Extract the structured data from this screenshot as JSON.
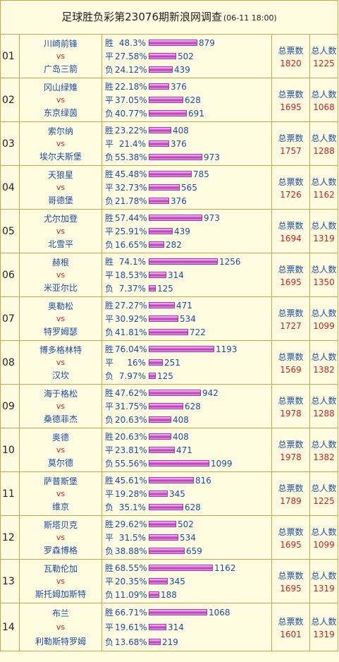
{
  "header": {
    "title": "足球胜负彩第23076期新浪网调查",
    "date": "(06-11 18:00)"
  },
  "labels": {
    "win": "胜",
    "draw": "平",
    "loss": "负",
    "vs": "vs",
    "total_votes": "总票数",
    "total_people": "总人数"
  },
  "bar_color": "#d85ad8",
  "matches": [
    {
      "idx": "01",
      "home": "川崎前锋",
      "away": "广岛三箭",
      "win_pct": "48.3%",
      "win": 879,
      "draw_pct": "27.58%",
      "draw": 502,
      "loss_pct": "24.12%",
      "loss": 439,
      "total": 1820,
      "people": 1225
    },
    {
      "idx": "02",
      "home": "冈山绿雉",
      "away": "东京绿茵",
      "win_pct": "22.18%",
      "win": 376,
      "draw_pct": "37.05%",
      "draw": 628,
      "loss_pct": "40.77%",
      "loss": 691,
      "total": 1695,
      "people": 1068
    },
    {
      "idx": "03",
      "home": "索尔纳",
      "away": "埃尔夫斯堡",
      "win_pct": "23.22%",
      "win": 408,
      "draw_pct": "21.4%",
      "draw": 376,
      "loss_pct": "55.38%",
      "loss": 973,
      "total": 1757,
      "people": 1288
    },
    {
      "idx": "04",
      "home": "天狼星",
      "away": "哥德堡",
      "win_pct": "45.48%",
      "win": 785,
      "draw_pct": "32.73%",
      "draw": 565,
      "loss_pct": "21.78%",
      "loss": 376,
      "total": 1726,
      "people": 1162
    },
    {
      "idx": "05",
      "home": "尤尔加登",
      "away": "北雪平",
      "win_pct": "57.44%",
      "win": 973,
      "draw_pct": "25.91%",
      "draw": 439,
      "loss_pct": "16.65%",
      "loss": 282,
      "total": 1694,
      "people": 1319
    },
    {
      "idx": "06",
      "home": "赫根",
      "away": "米亚尔比",
      "win_pct": "74.1%",
      "win": 1256,
      "draw_pct": "18.53%",
      "draw": 314,
      "loss_pct": "7.37%",
      "loss": 125,
      "total": 1695,
      "people": 1350
    },
    {
      "idx": "07",
      "home": "奥勒松",
      "away": "特罗姆瑟",
      "win_pct": "27.27%",
      "win": 471,
      "draw_pct": "30.92%",
      "draw": 534,
      "loss_pct": "41.81%",
      "loss": 722,
      "total": 1727,
      "people": 1099
    },
    {
      "idx": "08",
      "home": "博多格林特",
      "away": "汉坎",
      "win_pct": "76.04%",
      "win": 1193,
      "draw_pct": "16%",
      "draw": 251,
      "loss_pct": "7.97%",
      "loss": 125,
      "total": 1569,
      "people": 1382
    },
    {
      "idx": "09",
      "home": "海于格松",
      "away": "桑德菲杰",
      "win_pct": "47.62%",
      "win": 942,
      "draw_pct": "31.75%",
      "draw": 628,
      "loss_pct": "20.63%",
      "loss": 408,
      "total": 1978,
      "people": 1288
    },
    {
      "idx": "10",
      "home": "奥德",
      "away": "莫尔德",
      "win_pct": "20.63%",
      "win": 408,
      "draw_pct": "23.81%",
      "draw": 471,
      "loss_pct": "55.56%",
      "loss": 1099,
      "total": 1978,
      "people": 1382
    },
    {
      "idx": "11",
      "home": "萨普斯堡",
      "away": "维京",
      "win_pct": "45.61%",
      "win": 816,
      "draw_pct": "19.28%",
      "draw": 345,
      "loss_pct": "35.1%",
      "loss": 628,
      "total": 1789,
      "people": 1225
    },
    {
      "idx": "12",
      "home": "斯塔贝克",
      "away": "罗森博格",
      "win_pct": "29.62%",
      "win": 502,
      "draw_pct": "31.5%",
      "draw": 534,
      "loss_pct": "38.88%",
      "loss": 659,
      "total": 1695,
      "people": 1099
    },
    {
      "idx": "13",
      "home": "瓦勒伦加",
      "away": "斯托姆加斯特",
      "win_pct": "68.55%",
      "win": 1162,
      "draw_pct": "20.35%",
      "draw": 345,
      "loss_pct": "11.09%",
      "loss": 188,
      "total": 1695,
      "people": 1319
    },
    {
      "idx": "14",
      "home": "布兰",
      "away": "利勒斯特罗姆",
      "win_pct": "66.71%",
      "win": 1068,
      "draw_pct": "19.61%",
      "draw": 314,
      "loss_pct": "13.68%",
      "loss": 219,
      "total": 1601,
      "people": 1319
    }
  ]
}
